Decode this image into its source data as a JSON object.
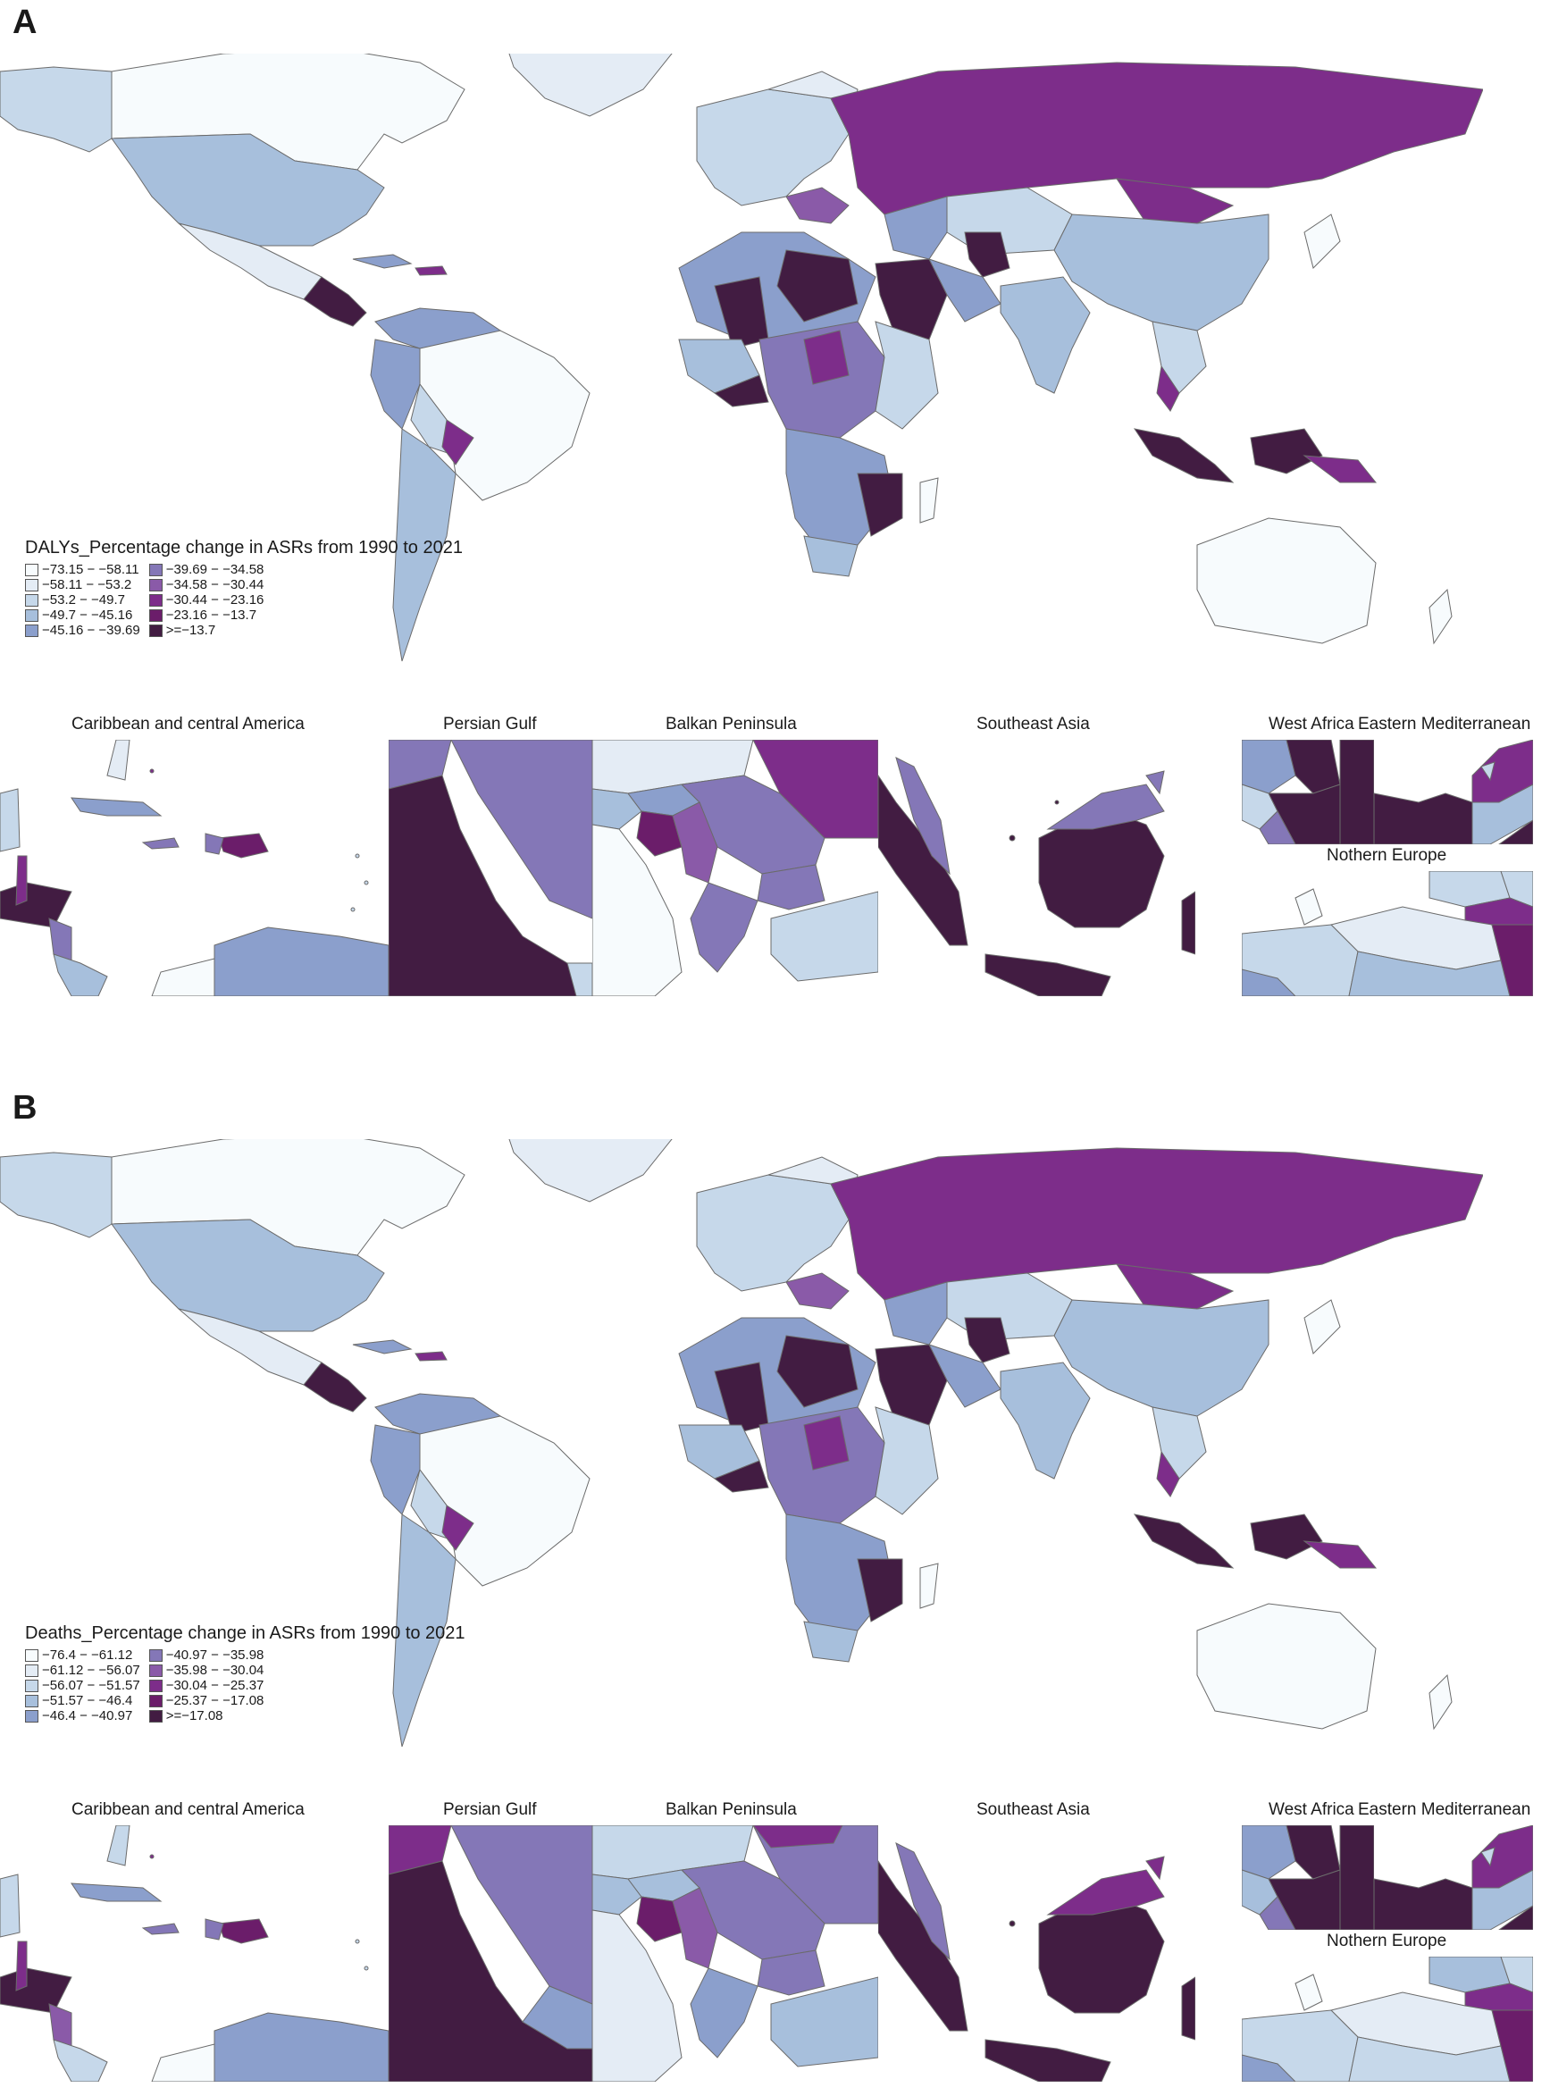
{
  "colors": {
    "bg": "#ffffff",
    "border": "#6b6b6b",
    "palette": [
      "#f7fbfd",
      "#e4ecf5",
      "#c6d8ea",
      "#a7bfdc",
      "#8b9fcc",
      "#8477b7",
      "#8a5aa8",
      "#7d2d8a",
      "#6b1d6a",
      "#421c42"
    ]
  },
  "panels": [
    {
      "letter": "A",
      "legend_title": "DALYs_Percentage change in ASRs from 1990 to 2021",
      "legend_items": [
        "−73.15 − −58.11",
        "−58.11 − −53.2",
        "−53.2 − −49.7",
        "−49.7 − −45.16",
        "−45.16 − −39.69",
        "−39.69 − −34.58",
        "−34.58 − −30.44",
        "−30.44 − −23.16",
        "−23.16 − −13.7",
        ">=−13.7"
      ]
    },
    {
      "letter": "B",
      "legend_title": "Deaths_Percentage change in ASRs from 1990 to 2021",
      "legend_items": [
        "−76.4 − −61.12",
        "−61.12 − −56.07",
        "−56.07 − −51.57",
        "−51.57 − −46.4",
        "−46.4 − −40.97",
        "−40.97 − −35.98",
        "−35.98 − −30.04",
        "−30.04 − −25.37",
        "−25.37 − −17.08",
        ">=−17.08"
      ]
    }
  ],
  "insets": {
    "caribbean": "Caribbean and central America",
    "persian_gulf": "Persian Gulf",
    "balkan": "Balkan Peninsula",
    "southeast_asia": "Southeast Asia",
    "west_africa": "West Africa",
    "eastern_med": "Eastern Mediterranean",
    "northern_europe": "Nothern Europe"
  }
}
